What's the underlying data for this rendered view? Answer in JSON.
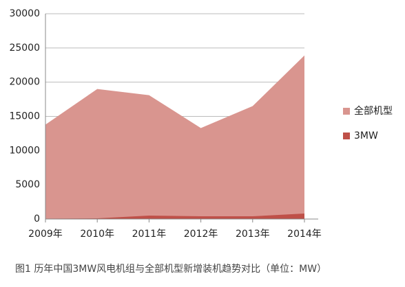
{
  "chart_data": {
    "type": "area",
    "categories": [
      "2009年",
      "2010年",
      "2011年",
      "2012年",
      "2013年",
      "2014年"
    ],
    "series": [
      {
        "name": "全部机型",
        "color": "#d9958f",
        "values": [
          13800,
          19000,
          18100,
          13300,
          16500,
          23900
        ]
      },
      {
        "name": "3MW",
        "color": "#bf5048",
        "values": [
          50,
          100,
          500,
          400,
          400,
          800
        ]
      }
    ],
    "ylim": [
      0,
      30000
    ],
    "yticks": [
      0,
      5000,
      10000,
      15000,
      20000,
      25000,
      30000
    ],
    "grid": true,
    "legend": "right",
    "caption": "图1 历年中国3MW风电机组与全部机型新增装机趋势对比（单位：MW）"
  }
}
